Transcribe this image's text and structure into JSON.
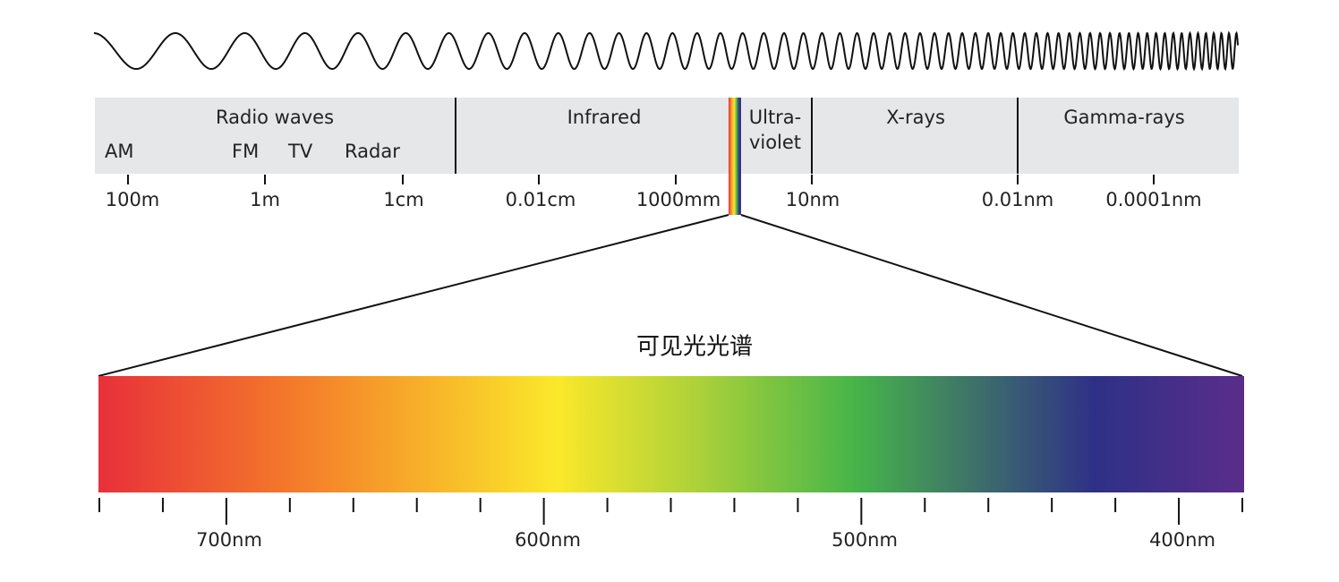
{
  "spectrum": {
    "bands": [
      {
        "label_lines": [
          "Radio waves"
        ]
      },
      {
        "label_lines": [
          "Infrared"
        ]
      },
      {
        "label_lines": [
          "Ultra-",
          "violet"
        ]
      },
      {
        "label_lines": [
          "X-rays"
        ]
      },
      {
        "label_lines": [
          "Gamma-rays"
        ]
      }
    ],
    "sub_labels": [
      "AM",
      "FM",
      "TV",
      "Radar"
    ],
    "scale_labels": [
      "100m",
      "1m",
      "1cm",
      "0.01cm",
      "1000mm",
      "10nm",
      "0.01nm",
      "0.0001nm"
    ]
  },
  "visible": {
    "title": "可见光光谱",
    "tick_labels": [
      "700nm",
      "600nm",
      "500nm",
      "400nm"
    ]
  }
}
